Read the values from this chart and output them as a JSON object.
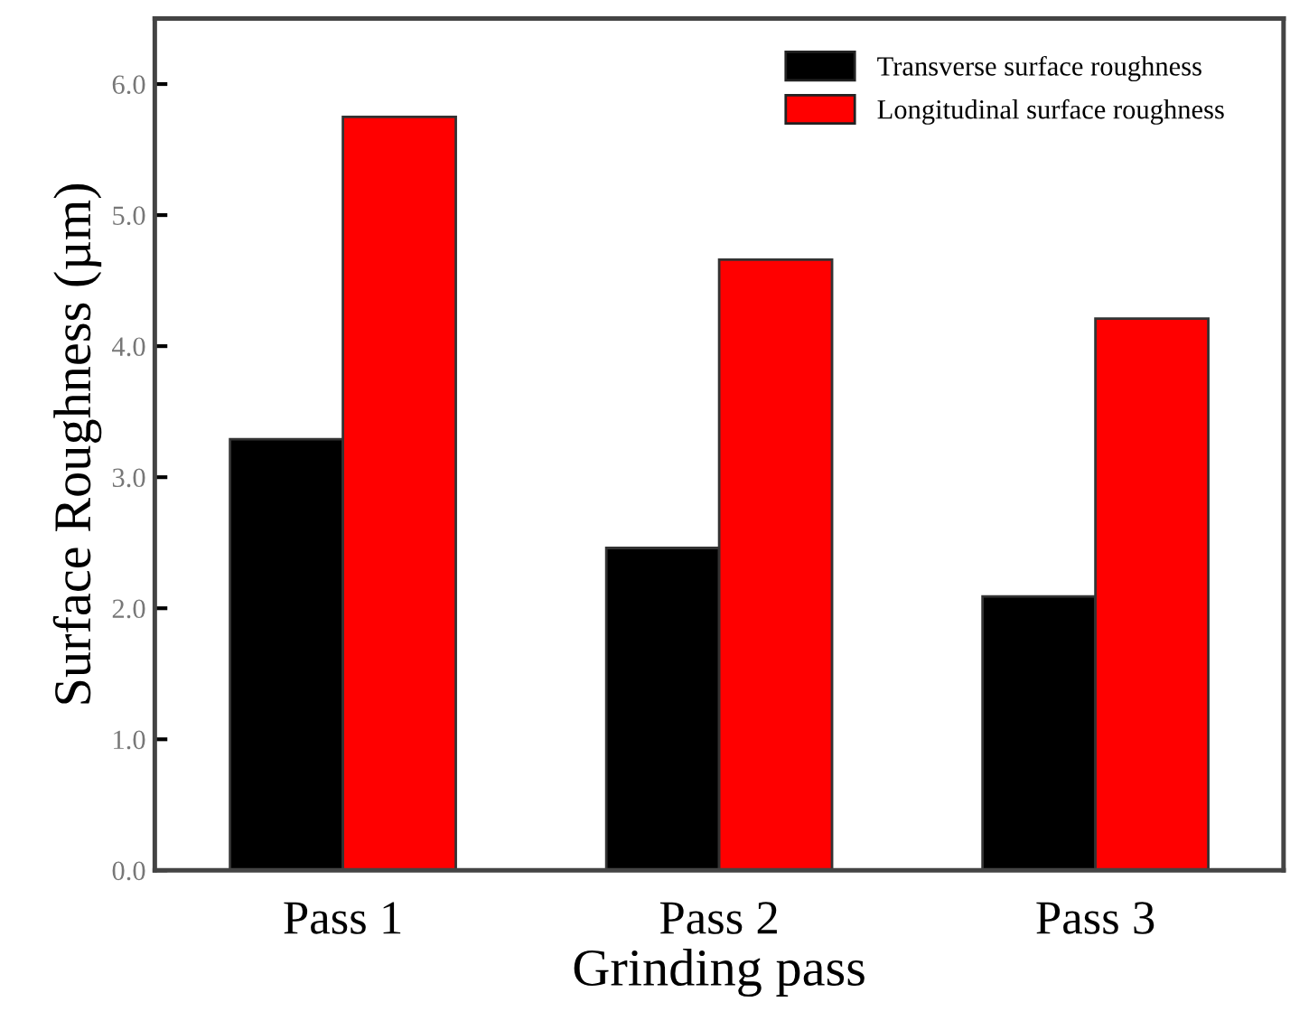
{
  "chart_data": {
    "type": "bar",
    "xlabel": "Grinding pass",
    "ylabel": "Surface Roughness (µm)",
    "categories": [
      "Pass 1",
      "Pass 2",
      "Pass 3"
    ],
    "series": [
      {
        "name": "Transverse surface roughness",
        "color": "#000000",
        "values": [
          3.29,
          2.46,
          2.09
        ]
      },
      {
        "name": "Longitudinal surface roughness",
        "color": "#ff0000",
        "values": [
          5.75,
          4.66,
          4.21
        ]
      }
    ],
    "ylim": [
      0,
      6.5
    ],
    "yticks": [
      {
        "value": 0,
        "label": "0.0"
      },
      {
        "value": 1,
        "label": "1.0"
      },
      {
        "value": 2,
        "label": "2.0"
      },
      {
        "value": 3,
        "label": "3.0"
      },
      {
        "value": 4,
        "label": "4.0"
      },
      {
        "value": 5,
        "label": "5.0"
      },
      {
        "value": 6,
        "label": "6.0"
      }
    ],
    "grid": false,
    "legend": "top right"
  }
}
